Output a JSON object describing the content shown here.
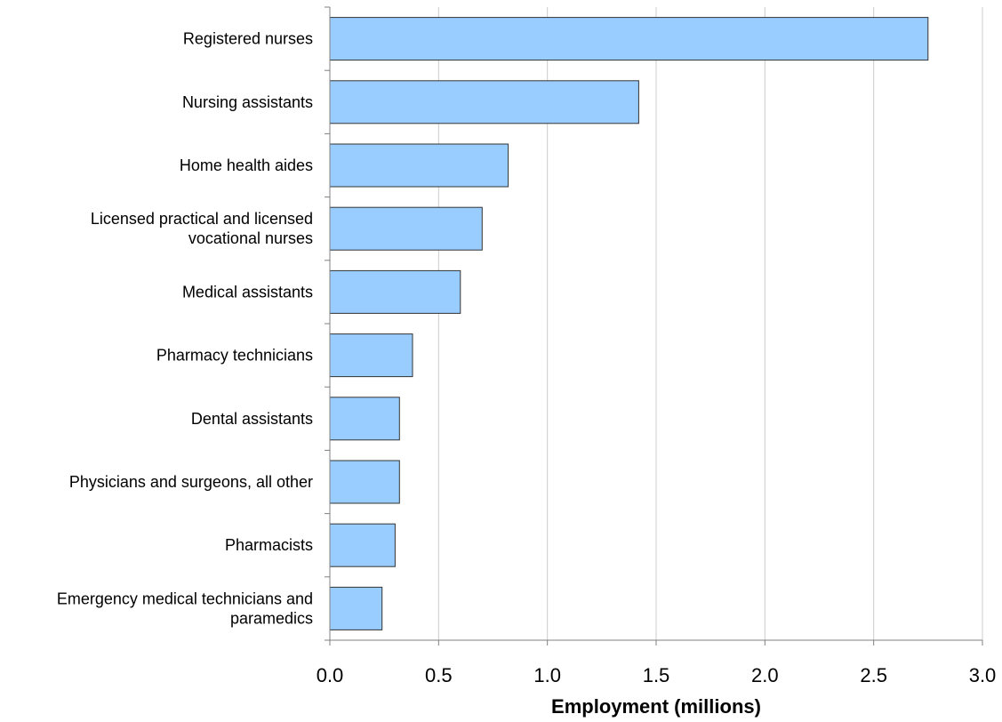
{
  "chart_data": {
    "type": "bar",
    "orientation": "horizontal",
    "categories": [
      [
        "Registered nurses"
      ],
      [
        "Nursing assistants"
      ],
      [
        "Home health aides"
      ],
      [
        "Licensed practical and licensed",
        "vocational nurses"
      ],
      [
        "Medical assistants"
      ],
      [
        "Pharmacy technicians"
      ],
      [
        "Dental assistants"
      ],
      [
        "Physicians and surgeons, all other"
      ],
      [
        "Pharmacists"
      ],
      [
        "Emergency medical technicians and",
        "paramedics"
      ]
    ],
    "values": [
      2.75,
      1.42,
      0.82,
      0.7,
      0.6,
      0.38,
      0.32,
      0.32,
      0.3,
      0.24
    ],
    "xlabel": "Employment (millions)",
    "ylabel": "",
    "title": "",
    "xlim": [
      0,
      3.0
    ],
    "xticks": [
      "0.0",
      "0.5",
      "1.0",
      "1.5",
      "2.0",
      "2.5",
      "3.0"
    ],
    "xtick_values": [
      0,
      0.5,
      1.0,
      1.5,
      2.0,
      2.5,
      3.0
    ],
    "grid": "vertical",
    "legend": "none",
    "colors": {
      "bar_fill": "#99ccff",
      "bar_stroke": "#333333",
      "gridline": "#cccccc",
      "axis": "#808080"
    }
  }
}
